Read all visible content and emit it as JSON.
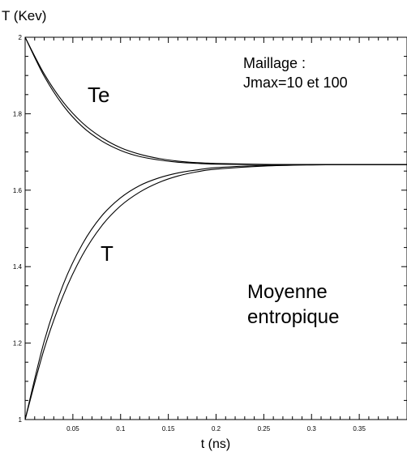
{
  "chart_data": {
    "type": "line",
    "ylabel": "T (Kev)",
    "xlabel": "t (ns)",
    "xlim": [
      0,
      0.4
    ],
    "ylim": [
      1,
      2
    ],
    "x_ticks": [
      {
        "value": 0.05,
        "label": "0.05"
      },
      {
        "value": 0.1,
        "label": "0.1"
      },
      {
        "value": 0.15,
        "label": "0.15"
      },
      {
        "value": 0.2,
        "label": "0.2"
      },
      {
        "value": 0.25,
        "label": "0.25"
      },
      {
        "value": 0.3,
        "label": "0.3"
      },
      {
        "value": 0.35,
        "label": "0.35"
      }
    ],
    "y_ticks": [
      {
        "value": 1,
        "label": "1"
      },
      {
        "value": 1.2,
        "label": "1.2"
      },
      {
        "value": 1.4,
        "label": "1.4"
      },
      {
        "value": 1.6,
        "label": "1.6"
      },
      {
        "value": 1.8,
        "label": "1.8"
      },
      {
        "value": 2,
        "label": "2"
      }
    ],
    "grid": false,
    "annotations": {
      "te": "Te",
      "t": "T",
      "maillage_line1": "Maillage :",
      "maillage_line2": "Jmax=10 et 100",
      "moyenne_line1": "Moyenne",
      "moyenne_line2": "entropique"
    },
    "x": [
      0,
      0.02,
      0.04,
      0.06,
      0.08,
      0.1,
      0.12,
      0.14,
      0.16,
      0.18,
      0.2,
      0.25,
      0.3,
      0.35,
      0.4
    ],
    "series": [
      {
        "values": [
          2.0,
          1.904,
          1.83,
          1.776,
          1.738,
          1.711,
          1.694,
          1.683,
          1.676,
          1.672,
          1.67,
          1.6675,
          1.667,
          1.667,
          1.667
        ]
      },
      {
        "values": [
          2.0,
          1.898,
          1.821,
          1.766,
          1.729,
          1.704,
          1.688,
          1.679,
          1.673,
          1.67,
          1.668,
          1.667,
          1.667,
          1.667,
          1.667
        ]
      },
      {
        "values": [
          1.0,
          1.185,
          1.325,
          1.43,
          1.506,
          1.559,
          1.595,
          1.62,
          1.637,
          1.648,
          1.655,
          1.663,
          1.666,
          1.667,
          1.667
        ]
      },
      {
        "values": [
          1.0,
          1.205,
          1.354,
          1.459,
          1.532,
          1.58,
          1.612,
          1.632,
          1.645,
          1.653,
          1.659,
          1.665,
          1.667,
          1.667,
          1.667
        ]
      }
    ]
  }
}
